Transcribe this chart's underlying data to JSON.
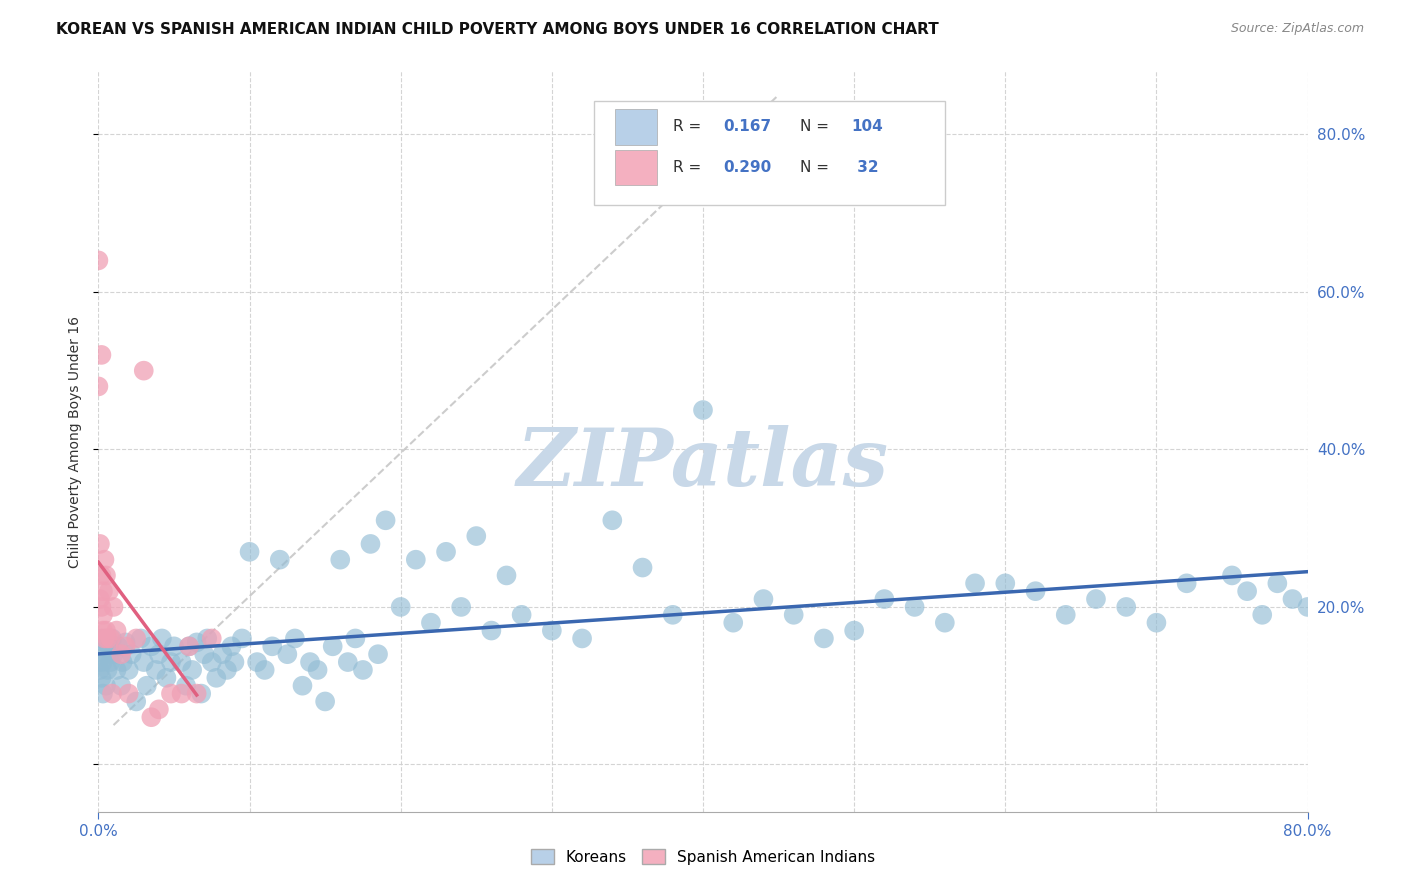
{
  "title": "KOREAN VS SPANISH AMERICAN INDIAN CHILD POVERTY AMONG BOYS UNDER 16 CORRELATION CHART",
  "source": "Source: ZipAtlas.com",
  "ylabel": "Child Poverty Among Boys Under 16",
  "ylabel_right_ticks": [
    "80.0%",
    "60.0%",
    "40.0%",
    "20.0%"
  ],
  "ylabel_right_positions": [
    0.8,
    0.6,
    0.4,
    0.2
  ],
  "watermark": "ZIPatlas",
  "korean_scatter_x": [
    0.0,
    0.001,
    0.001,
    0.002,
    0.002,
    0.003,
    0.003,
    0.004,
    0.005,
    0.005,
    0.006,
    0.007,
    0.008,
    0.009,
    0.01,
    0.012,
    0.013,
    0.015,
    0.016,
    0.018,
    0.02,
    0.022,
    0.025,
    0.028,
    0.03,
    0.032,
    0.035,
    0.038,
    0.04,
    0.042,
    0.045,
    0.048,
    0.05,
    0.055,
    0.058,
    0.06,
    0.062,
    0.065,
    0.068,
    0.07,
    0.072,
    0.075,
    0.078,
    0.082,
    0.085,
    0.088,
    0.09,
    0.095,
    0.1,
    0.105,
    0.11,
    0.115,
    0.12,
    0.125,
    0.13,
    0.135,
    0.14,
    0.145,
    0.15,
    0.155,
    0.16,
    0.165,
    0.17,
    0.175,
    0.18,
    0.185,
    0.19,
    0.2,
    0.21,
    0.22,
    0.23,
    0.24,
    0.25,
    0.26,
    0.27,
    0.28,
    0.3,
    0.32,
    0.34,
    0.36,
    0.38,
    0.4,
    0.42,
    0.44,
    0.46,
    0.48,
    0.5,
    0.52,
    0.54,
    0.56,
    0.58,
    0.6,
    0.62,
    0.64,
    0.66,
    0.68,
    0.7,
    0.72,
    0.75,
    0.76,
    0.77,
    0.78,
    0.79,
    0.8
  ],
  "korean_scatter_y": [
    0.13,
    0.15,
    0.12,
    0.11,
    0.16,
    0.13,
    0.09,
    0.155,
    0.14,
    0.1,
    0.12,
    0.15,
    0.13,
    0.16,
    0.14,
    0.12,
    0.15,
    0.1,
    0.13,
    0.155,
    0.12,
    0.14,
    0.08,
    0.16,
    0.13,
    0.1,
    0.15,
    0.12,
    0.14,
    0.16,
    0.11,
    0.13,
    0.15,
    0.13,
    0.1,
    0.15,
    0.12,
    0.155,
    0.09,
    0.14,
    0.16,
    0.13,
    0.11,
    0.14,
    0.12,
    0.15,
    0.13,
    0.16,
    0.27,
    0.13,
    0.12,
    0.15,
    0.26,
    0.14,
    0.16,
    0.1,
    0.13,
    0.12,
    0.08,
    0.15,
    0.26,
    0.13,
    0.16,
    0.12,
    0.28,
    0.14,
    0.31,
    0.2,
    0.26,
    0.18,
    0.27,
    0.2,
    0.29,
    0.17,
    0.24,
    0.19,
    0.17,
    0.16,
    0.31,
    0.25,
    0.19,
    0.45,
    0.18,
    0.21,
    0.19,
    0.16,
    0.17,
    0.21,
    0.2,
    0.18,
    0.23,
    0.23,
    0.22,
    0.19,
    0.21,
    0.2,
    0.18,
    0.23,
    0.24,
    0.22,
    0.19,
    0.23,
    0.21,
    0.2
  ],
  "sai_scatter_x": [
    0.0,
    0.0,
    0.001,
    0.001,
    0.002,
    0.002,
    0.003,
    0.003,
    0.003,
    0.004,
    0.004,
    0.005,
    0.005,
    0.006,
    0.007,
    0.008,
    0.009,
    0.01,
    0.012,
    0.015,
    0.018,
    0.02,
    0.025,
    0.03,
    0.035,
    0.04,
    0.048,
    0.055,
    0.065,
    0.075,
    0.002,
    0.06
  ],
  "sai_scatter_y": [
    0.64,
    0.48,
    0.28,
    0.21,
    0.24,
    0.2,
    0.22,
    0.19,
    0.17,
    0.26,
    0.16,
    0.24,
    0.17,
    0.16,
    0.22,
    0.16,
    0.09,
    0.2,
    0.17,
    0.14,
    0.15,
    0.09,
    0.16,
    0.5,
    0.06,
    0.07,
    0.09,
    0.09,
    0.09,
    0.16,
    0.52,
    0.15
  ],
  "plot_bgcolor": "#ffffff",
  "korean_color": "#92bcd4",
  "korean_line_color": "#3a67b0",
  "sai_color": "#f0a0b5",
  "sai_line_color": "#e06080",
  "legend_box_color_korean": "#b8d0e8",
  "legend_box_color_sai": "#f4b0c0",
  "grid_color": "#d0d0d0",
  "watermark_color": "#c8d8e8",
  "xmin": 0.0,
  "xmax": 0.8,
  "ymin": -0.06,
  "ymax": 0.88,
  "title_fontsize": 11,
  "source_fontsize": 9
}
